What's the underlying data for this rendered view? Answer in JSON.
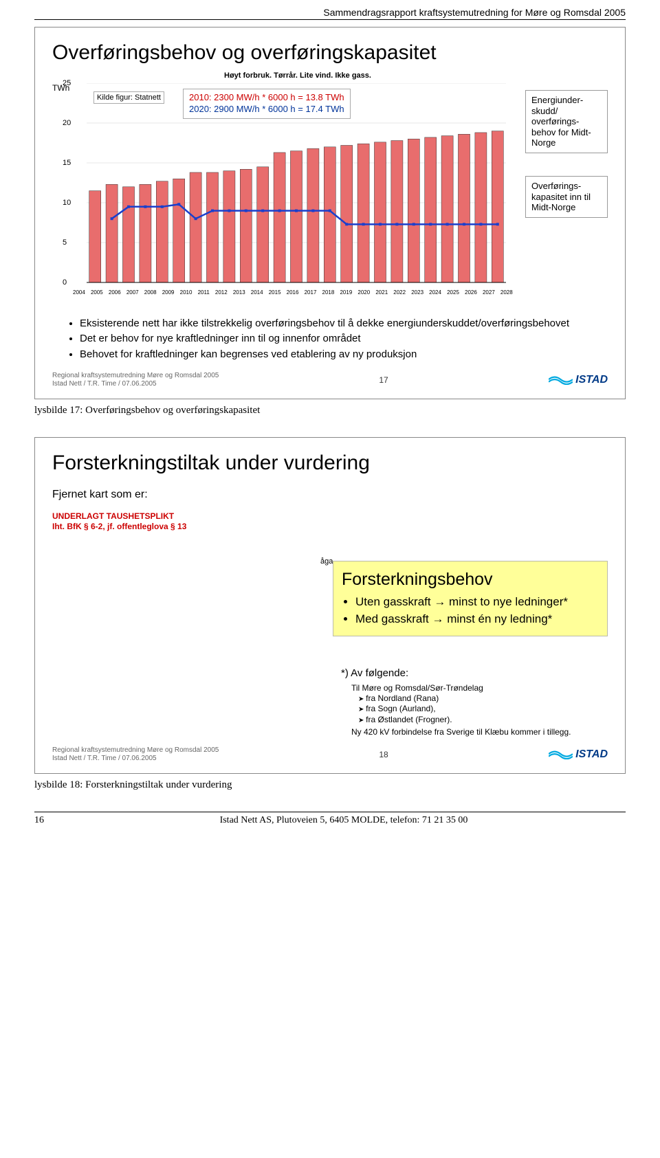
{
  "header": "Sammendragsrapport kraftsystemutredning for Møre og Romsdal 2005",
  "slide1": {
    "title": "Overføringsbehov og overføringskapasitet",
    "yaxis_title": "TWh",
    "subtitle": "Høyt forbruk. Tørrår. Lite vind. Ikke gass.",
    "kilde": "Kilde figur: Statnett",
    "formula_l1": "2010:  2300 MW/h * 6000 h = 13.8 TWh",
    "formula_l2": "2020:  2900 MW/h * 6000 h = 17.4 TWh",
    "legend1": "Energiunder-skudd/ overførings-behov for Midt-Norge",
    "legend2": "Overførings-kapasitet inn til Midt-Norge",
    "yticks": [
      "0",
      "5",
      "10",
      "15",
      "20",
      "25"
    ],
    "years": [
      "2004",
      "2005",
      "2006",
      "2007",
      "2008",
      "2009",
      "2010",
      "2011",
      "2012",
      "2013",
      "2014",
      "2015",
      "2016",
      "2017",
      "2018",
      "2019",
      "2020",
      "2021",
      "2022",
      "2023",
      "2024",
      "2025",
      "2026",
      "2027",
      "2028"
    ],
    "bar_color": "#e86d6d",
    "bar_border": "#333333",
    "line_color": "#1a3fcc",
    "grid_color": "#cfcfcf",
    "bar_values": [
      11.5,
      12.3,
      12.0,
      12.3,
      12.7,
      13.0,
      13.8,
      13.8,
      14.0,
      14.2,
      14.5,
      16.3,
      16.5,
      16.8,
      17.0,
      17.2,
      17.4,
      17.6,
      17.8,
      18.0,
      18.2,
      18.4,
      18.6,
      18.8,
      19.0
    ],
    "line_values": [
      null,
      8.0,
      9.5,
      9.5,
      9.5,
      9.8,
      8.0,
      9.0,
      9.0,
      9.0,
      9.0,
      9.0,
      9.0,
      9.0,
      9.0,
      7.3,
      7.3,
      7.3,
      7.3,
      7.3,
      7.3,
      7.3,
      7.3,
      7.3,
      7.3
    ],
    "ymax": 25,
    "bullets": [
      "Eksisterende nett har ikke tilstrekkelig overføringsbehov til å dekke energiunderskuddet/overføringsbehovet",
      "Det er behov for nye kraftledninger inn til og innenfor området",
      "Behovet for kraftledninger kan begrenses ved etablering av ny produksjon"
    ],
    "footer_l1": "Regional kraftsystemutredning Møre og Romsdal 2005",
    "footer_l2": "Istad Nett /  T.R. Time  / 07.06.2005",
    "slide_num": "17"
  },
  "caption1": "lysbilde 17: Overføringsbehov og overføringskapasitet",
  "slide2": {
    "title": "Forsterkningstiltak under vurdering",
    "fjernet": "Fjernet kart som er:",
    "red_l1": "UNDERLAGT TAUSHETSPLIKT",
    "red_l2": "Iht. BfK § 6-2, jf. offentleglova § 13",
    "aga": "åga",
    "yellow_title": "Forsterkningsbehov",
    "yellow_items": [
      "Uten gasskraft → minst to nye ledninger*",
      "Med gasskraft → minst én ny ledning*"
    ],
    "av_following": "*) Av følgende:",
    "sub_title": "Til Møre og Romsdal/Sør-Trøndelag",
    "arrows": [
      "fra Nordland (Rana)",
      "fra Sogn (Aurland),",
      "fra Østlandet (Frogner)."
    ],
    "ny": "Ny 420 kV forbindelse fra Sverige til Klæbu kommer i tillegg.",
    "footer_l1": "Regional kraftsystemutredning Møre og Romsdal 2005",
    "footer_l2": "Istad Nett /  T.R. Time  / 07.06.2005",
    "slide_num": "18"
  },
  "caption2": "lysbilde 18: Forsterkningstiltak under vurdering",
  "page_footer": {
    "num": "16",
    "text": "Istad Nett AS, Plutoveien 5, 6405 MOLDE, telefon: 71 21 35 00"
  }
}
